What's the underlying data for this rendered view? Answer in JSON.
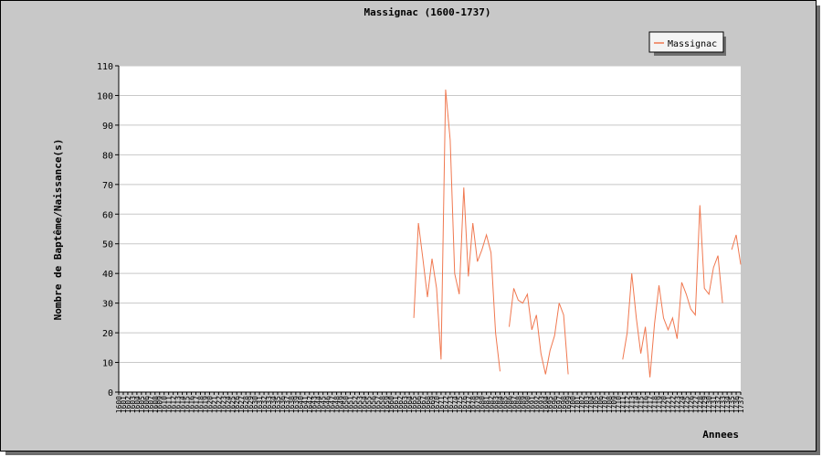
{
  "chart_data": {
    "type": "line",
    "title": "Massignac (1600-1737)",
    "xlabel": "Annees",
    "ylabel": "Nombre de Baptême/Naissance(s)",
    "ylim": [
      0,
      110
    ],
    "yticks": [
      0,
      10,
      20,
      30,
      40,
      50,
      60,
      70,
      80,
      90,
      100,
      110
    ],
    "xlim": [
      1600,
      1737
    ],
    "grid": true,
    "legend_position": "top-right",
    "series": [
      {
        "name": "Massignac",
        "color": "#f07850",
        "points": [
          [
            1665,
            25
          ],
          [
            1666,
            57
          ],
          [
            1667,
            45
          ],
          [
            1668,
            32
          ],
          [
            1669,
            45
          ],
          [
            1670,
            35
          ],
          [
            1671,
            11
          ],
          [
            1672,
            102
          ],
          [
            1673,
            85
          ],
          [
            1674,
            40
          ],
          [
            1675,
            33
          ],
          [
            1676,
            69
          ],
          [
            1677,
            39
          ],
          [
            1678,
            57
          ],
          [
            1679,
            44
          ],
          [
            1680,
            48
          ],
          [
            1681,
            53
          ],
          [
            1682,
            47
          ],
          [
            1683,
            20
          ],
          [
            1684,
            7
          ],
          [
            1686,
            22
          ],
          [
            1687,
            35
          ],
          [
            1688,
            31
          ],
          [
            1689,
            30
          ],
          [
            1690,
            33
          ],
          [
            1691,
            21
          ],
          [
            1692,
            26
          ],
          [
            1693,
            13
          ],
          [
            1694,
            6
          ],
          [
            1695,
            14
          ],
          [
            1696,
            19
          ],
          [
            1697,
            30
          ],
          [
            1698,
            26
          ],
          [
            1699,
            6
          ],
          [
            1711,
            11
          ],
          [
            1712,
            20
          ],
          [
            1713,
            40
          ],
          [
            1714,
            25
          ],
          [
            1715,
            13
          ],
          [
            1716,
            22
          ],
          [
            1717,
            5
          ],
          [
            1718,
            23
          ],
          [
            1719,
            36
          ],
          [
            1720,
            25
          ],
          [
            1721,
            21
          ],
          [
            1722,
            25
          ],
          [
            1723,
            18
          ],
          [
            1724,
            37
          ],
          [
            1725,
            33
          ],
          [
            1726,
            28
          ],
          [
            1727,
            26
          ],
          [
            1728,
            63
          ],
          [
            1729,
            35
          ],
          [
            1730,
            33
          ],
          [
            1731,
            42
          ],
          [
            1732,
            46
          ],
          [
            1733,
            30
          ],
          [
            1735,
            48
          ],
          [
            1736,
            53
          ],
          [
            1737,
            43
          ]
        ]
      }
    ]
  }
}
